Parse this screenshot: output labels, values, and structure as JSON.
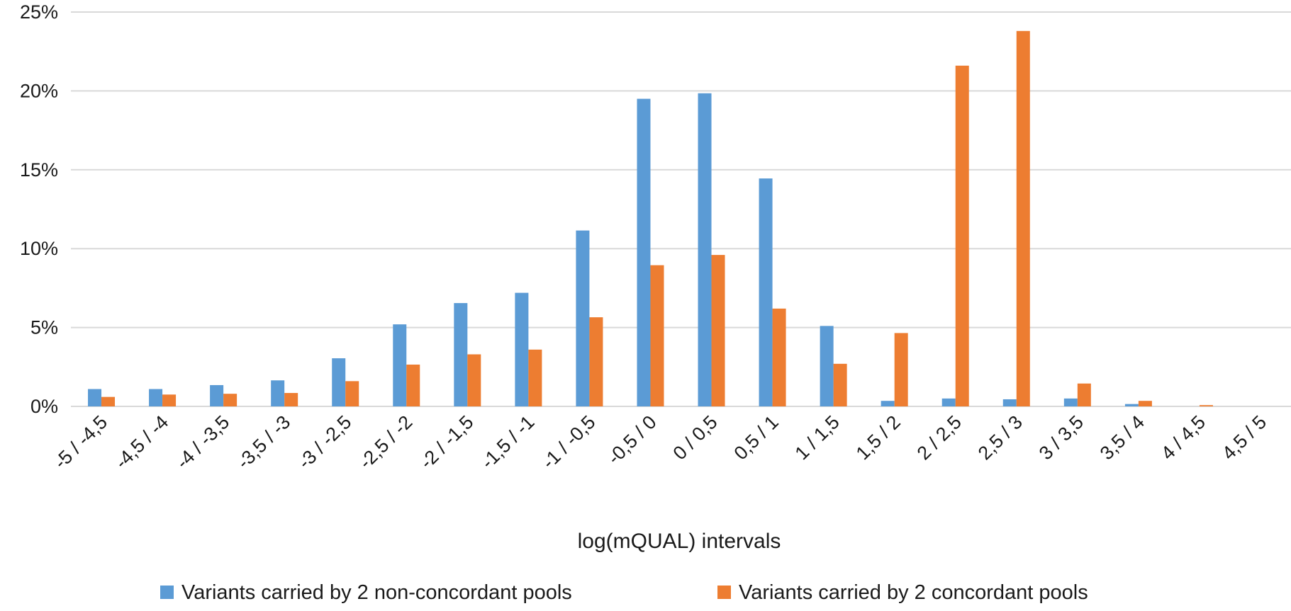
{
  "chart_data": {
    "type": "bar",
    "title": "",
    "xlabel": "log(mQUAL) intervals",
    "ylabel": "",
    "ylim": [
      0,
      25
    ],
    "yticks": [
      "0%",
      "5%",
      "10%",
      "15%",
      "20%",
      "25%"
    ],
    "grid": true,
    "legend_position": "bottom",
    "categories": [
      "-5 / -4,5",
      "-4,5 / -4",
      "-4 / -3,5",
      "-3,5 / -3",
      "-3 / -2,5",
      "-2,5 / -2",
      "-2 / -1,5",
      "-1,5 / -1",
      "-1 / -0,5",
      "-0,5 / 0",
      "0 / 0,5",
      "0,5 / 1",
      "1 / 1,5",
      "1,5 / 2",
      "2 / 2,5",
      "2,5 / 3",
      "3 / 3,5",
      "3,5 / 4",
      "4 / 4,5",
      "4,5 / 5"
    ],
    "series": [
      {
        "name": "Variants carried by 2 non-concordant pools",
        "color": "#5b9bd5",
        "values": [
          1.1,
          1.1,
          1.35,
          1.65,
          3.05,
          5.2,
          6.55,
          7.2,
          11.15,
          19.5,
          19.85,
          14.45,
          5.1,
          0.35,
          0.5,
          0.45,
          0.5,
          0.15,
          0.0,
          0.0
        ]
      },
      {
        "name": "Variants carried by 2 concordant pools",
        "color": "#ed7d31",
        "values": [
          0.6,
          0.75,
          0.8,
          0.85,
          1.6,
          2.65,
          3.3,
          3.6,
          5.65,
          8.95,
          9.6,
          6.2,
          2.7,
          4.65,
          21.6,
          23.8,
          1.45,
          0.35,
          0.08,
          0.0
        ]
      }
    ]
  }
}
